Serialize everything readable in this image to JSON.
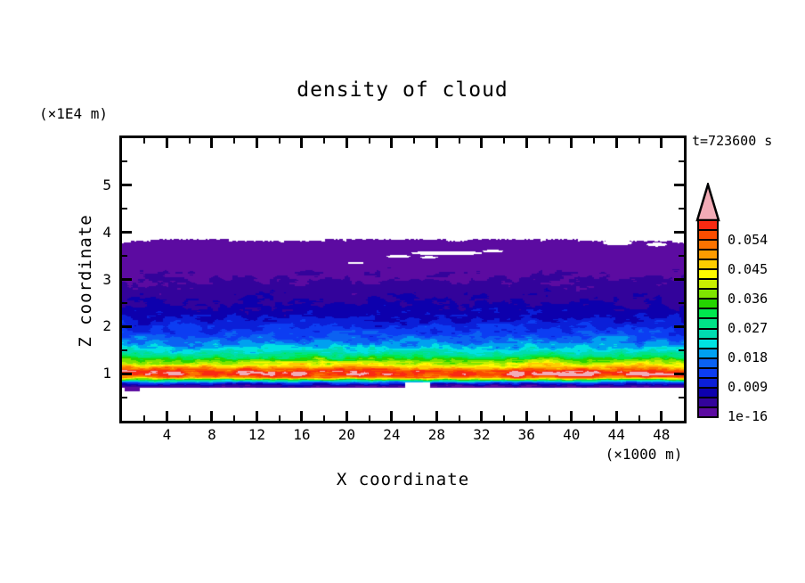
{
  "meta": {
    "background": "#ffffff",
    "frame_color": "#000000",
    "text_color": "#000000"
  },
  "chart_data": {
    "type": "filled_contour",
    "title": "density of cloud",
    "time_annotation": "t=723600 s",
    "xlabel": "X coordinate",
    "x_unit": "(×1000 m)",
    "ylabel": "Z coordinate",
    "y_unit": "(×1E4 m)",
    "x_range": [
      0,
      50
    ],
    "y_range": [
      0,
      6
    ],
    "x_major_ticks": [
      4,
      8,
      12,
      16,
      20,
      24,
      28,
      32,
      36,
      40,
      44,
      48
    ],
    "x_major_tick_labels": [
      "4",
      "8",
      "12",
      "16",
      "20",
      "24",
      "28",
      "32",
      "36",
      "40",
      "44",
      "48"
    ],
    "x_minor_step": 2,
    "y_major_ticks": [
      1,
      2,
      3,
      4,
      5
    ],
    "y_major_tick_labels": [
      "1",
      "2",
      "3",
      "4",
      "5"
    ],
    "y_minor_step": 0.5,
    "grid": false,
    "legend_position": "right",
    "colorbar": {
      "orientation": "vertical",
      "min": 1e-16,
      "max": 0.06,
      "level_step": 0.003,
      "labels": [
        "0.054",
        "0.045",
        "0.036",
        "0.027",
        "0.018",
        "0.009",
        "1e-16"
      ],
      "label_values": [
        0.054,
        0.045,
        0.036,
        0.027,
        0.018,
        0.009,
        1e-16
      ],
      "colors_bottom_to_top": [
        "#5c0ba1",
        "#33039b",
        "#0d00ad",
        "#0b1fd8",
        "#0c3df2",
        "#0b62f2",
        "#00a0f0",
        "#00e2e2",
        "#00dcb0",
        "#00e287",
        "#00e74e",
        "#25d500",
        "#7fe400",
        "#c9ef00",
        "#fdf900",
        "#fdcd00",
        "#fd9b00",
        "#fb7300",
        "#fa4d00",
        "#f92a12"
      ],
      "overflow_color": "#f2abb6",
      "overflow_shape": "triangle-up"
    },
    "field": {
      "description": "Stratified cloud-density field: white (zero) above cloud top near z=3.85 and below cloud base near z=0.70; density increases downward from the cloud top through violet/blue/cyan/green layers to a sharp red maximum (>0.054, locally >0.06 pink) in a stripe near z=1.0, then drops abruptly to zero at the base.",
      "cloud_top_z": 3.85,
      "cloud_base_z": 0.7,
      "peak_z": 1.0,
      "peak_value": 0.06,
      "profile_points": [
        [
          0.7,
          0.0008
        ],
        [
          0.75,
          0.005
        ],
        [
          0.8,
          0.012
        ],
        [
          0.86,
          0.03
        ],
        [
          0.92,
          0.052
        ],
        [
          0.98,
          0.06
        ],
        [
          1.05,
          0.058
        ],
        [
          1.12,
          0.05
        ],
        [
          1.18,
          0.044
        ],
        [
          1.24,
          0.04
        ],
        [
          1.3,
          0.035
        ],
        [
          1.38,
          0.029
        ],
        [
          1.47,
          0.024
        ],
        [
          1.58,
          0.02
        ],
        [
          1.7,
          0.017
        ],
        [
          1.85,
          0.0135
        ],
        [
          2.0,
          0.0115
        ],
        [
          2.2,
          0.009
        ],
        [
          2.5,
          0.006
        ],
        [
          3.0,
          0.003
        ],
        [
          3.5,
          0.0013
        ],
        [
          3.86,
          0.0002
        ]
      ],
      "noise_amp_points": [
        [
          0.7,
          0.0025
        ],
        [
          0.85,
          0.0075
        ],
        [
          1.05,
          0.0075
        ],
        [
          1.3,
          0.0065
        ],
        [
          1.6,
          0.0055
        ],
        [
          2.0,
          0.0042
        ],
        [
          2.4,
          0.003
        ],
        [
          2.9,
          0.002
        ],
        [
          3.3,
          0.0011
        ],
        [
          3.86,
          0.0007
        ]
      ],
      "holes": [
        {
          "x": 28.9,
          "z": 3.56,
          "rx": 3.2,
          "rz": 0.045
        },
        {
          "x": 24.6,
          "z": 3.49,
          "rx": 1.1,
          "rz": 0.03
        },
        {
          "x": 27.3,
          "z": 3.47,
          "rx": 0.8,
          "rz": 0.025
        },
        {
          "x": 33.0,
          "z": 3.6,
          "rx": 0.9,
          "rz": 0.03
        },
        {
          "x": 44.1,
          "z": 3.78,
          "rx": 1.3,
          "rz": 0.06
        },
        {
          "x": 47.6,
          "z": 3.74,
          "rx": 0.9,
          "rz": 0.04
        },
        {
          "x": 20.8,
          "z": 3.35,
          "rx": 0.7,
          "rz": 0.025
        }
      ],
      "hot_spots": [
        {
          "x": 21.6,
          "z": 1.0,
          "rx": 0.55,
          "rz": 0.045
        },
        {
          "x": 34.9,
          "z": 1.02,
          "rx": 0.6,
          "rz": 0.045
        },
        {
          "x": 44.3,
          "z": 1.05,
          "rx": 0.4,
          "rz": 0.035
        },
        {
          "x": 47.9,
          "z": 1.0,
          "rx": 0.5,
          "rz": 0.035
        }
      ],
      "base_notches": [
        {
          "x0": 25.2,
          "x1": 27.4,
          "z": 0.82
        }
      ],
      "base_blobs": [
        {
          "x0": 0.2,
          "x1": 1.6,
          "z0": 0.62,
          "z1": 0.72
        }
      ],
      "seed": 5
    }
  }
}
